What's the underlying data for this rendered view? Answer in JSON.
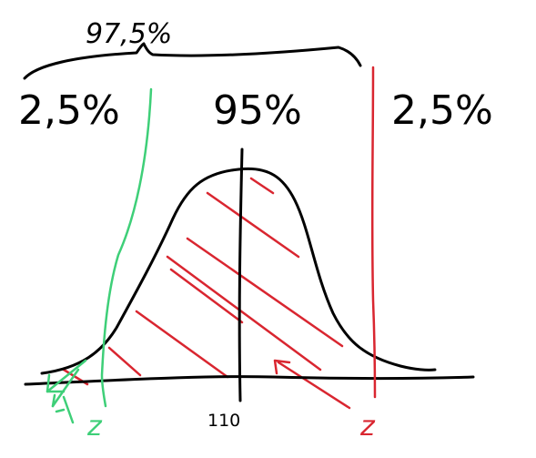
{
  "annotations": {
    "top_brace_label": "97,5%",
    "left_tail_label": "2,5%",
    "center_label": "95%",
    "right_tail_label": "2,5%",
    "mean_label": "110",
    "left_z_label": "z",
    "right_z_label": "z"
  },
  "colors": {
    "ink": "#000000",
    "green": "#3ecf78",
    "red": "#d92630"
  }
}
